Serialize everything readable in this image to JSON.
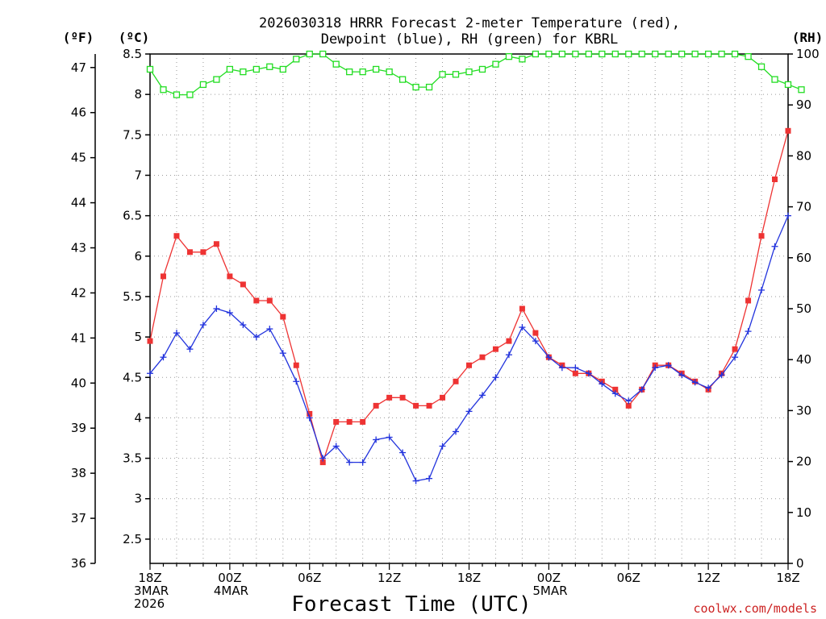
{
  "chart_data": {
    "type": "line",
    "title_line1": "2026030318 HRRR Forecast 2-meter Temperature (red),",
    "title_line2": "Dewpoint (blue), RH (green) for KBRL",
    "xlabel": "Forecast Time (UTC)",
    "credit": "coolwx.com/models",
    "unit_f": "(ºF)",
    "unit_c": "(ºC)",
    "unit_rh": "(RH)",
    "celsius_axis": {
      "ylim": [
        2.2,
        8.5
      ],
      "ticks": [
        "2.5",
        "3",
        "3.5",
        "4",
        "4.5",
        "5",
        "5.5",
        "6",
        "6.5",
        "7",
        "7.5",
        "8",
        "8.5"
      ]
    },
    "fahrenheit_axis": {
      "ylim": [
        36,
        47.3
      ],
      "ticks": [
        "36",
        "37",
        "38",
        "39",
        "40",
        "41",
        "42",
        "43",
        "44",
        "45",
        "46",
        "47"
      ]
    },
    "rh_axis": {
      "ylim": [
        0,
        100
      ],
      "ticks": [
        "0",
        "10",
        "20",
        "30",
        "40",
        "50",
        "60",
        "70",
        "80",
        "90",
        "100"
      ]
    },
    "x_ticks": [
      {
        "hour": 0,
        "lines": [
          "18Z",
          "3MAR",
          "2026"
        ]
      },
      {
        "hour": 6,
        "lines": [
          "00Z",
          "4MAR"
        ]
      },
      {
        "hour": 12,
        "lines": [
          "06Z"
        ]
      },
      {
        "hour": 18,
        "lines": [
          "12Z"
        ]
      },
      {
        "hour": 24,
        "lines": [
          "18Z"
        ]
      },
      {
        "hour": 30,
        "lines": [
          "00Z",
          "5MAR"
        ]
      },
      {
        "hour": 36,
        "lines": [
          "06Z"
        ]
      },
      {
        "hour": 42,
        "lines": [
          "12Z"
        ]
      },
      {
        "hour": 48,
        "lines": [
          "18Z"
        ]
      }
    ],
    "xlim": [
      0,
      48
    ],
    "series": [
      {
        "name": "Temperature (°C)",
        "color": "#ee3333",
        "marker": "filled-square",
        "axis": "celsius",
        "values": [
          4.95,
          5.75,
          6.25,
          6.05,
          6.05,
          6.15,
          5.75,
          5.65,
          5.45,
          5.45,
          5.25,
          4.65,
          4.05,
          3.45,
          3.95,
          3.95,
          3.95,
          4.15,
          4.25,
          4.25,
          4.15,
          4.15,
          4.25,
          4.45,
          4.65,
          4.75,
          4.85,
          4.95,
          5.35,
          5.05,
          4.75,
          4.65,
          4.55,
          4.55,
          4.45,
          4.35,
          4.15,
          4.35,
          4.65,
          4.65,
          4.55,
          4.45,
          4.35,
          4.55,
          4.85,
          5.45,
          6.25,
          6.95,
          7.55
        ]
      },
      {
        "name": "Dewpoint (°C)",
        "color": "#2233dd",
        "marker": "plus",
        "axis": "celsius",
        "values": [
          4.55,
          4.75,
          5.05,
          4.85,
          5.15,
          5.35,
          5.3,
          5.15,
          5.0,
          5.1,
          4.8,
          4.45,
          4.0,
          3.5,
          3.65,
          3.45,
          3.45,
          3.73,
          3.76,
          3.57,
          3.22,
          3.25,
          3.65,
          3.83,
          4.08,
          4.28,
          4.5,
          4.78,
          5.12,
          4.95,
          4.75,
          4.62,
          4.62,
          4.55,
          4.42,
          4.3,
          4.21,
          4.35,
          4.62,
          4.65,
          4.53,
          4.44,
          4.37,
          4.53,
          4.75,
          5.07,
          5.58,
          6.12,
          6.5
        ]
      },
      {
        "name": "RH (%)",
        "color": "#22dd22",
        "marker": "open-square",
        "axis": "rh",
        "values": [
          97,
          93,
          92,
          92,
          94,
          95,
          97,
          96.5,
          97,
          97.5,
          97,
          99,
          100,
          100,
          98,
          96.5,
          96.5,
          97,
          96.5,
          95,
          93.5,
          93.5,
          96,
          96,
          96.5,
          97,
          98,
          99.5,
          99,
          100,
          100,
          100,
          100,
          100,
          100,
          100,
          100,
          100,
          100,
          100,
          100,
          100,
          100,
          100,
          100,
          99.5,
          97.5,
          95,
          94,
          93
        ]
      }
    ]
  }
}
